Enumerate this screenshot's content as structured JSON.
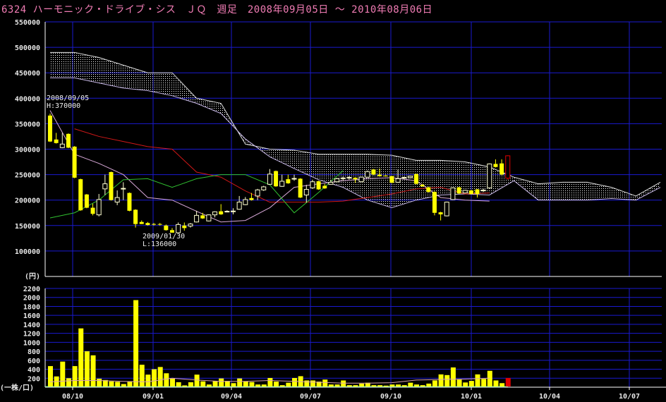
{
  "title": "6324 ハーモニック・ドライブ・シス　ＪＱ　週足　2008年09月05日 ～ 2010年08月06日",
  "chart_data": [
    {
      "type": "candlestick",
      "panel": "price",
      "interval": "weekly",
      "first_bar_date": "2008/09/05",
      "y_unit_label": "(円)",
      "ylim": [
        50000,
        550000
      ],
      "yticks": [
        "550000",
        "500000",
        "450000",
        "400000",
        "350000",
        "300000",
        "250000",
        "200000",
        "150000",
        "100000"
      ],
      "grid": true,
      "colors": {
        "down_fill": "#ffff00",
        "up_outline": "#ffffd0",
        "current_bar": "#e00000",
        "grid": "#1a1ad0",
        "cloud": "#ffffff",
        "kijun": "#d01818",
        "tenkan": "#d8a8d8",
        "chikou": "#30c030"
      },
      "ohlc": [
        [
          366000,
          370000,
          314000,
          315000
        ],
        [
          319000,
          332000,
          311000,
          312000
        ],
        [
          303000,
          332000,
          302000,
          310000
        ],
        [
          330000,
          331000,
          302000,
          303000
        ],
        [
          305000,
          306000,
          243000,
          244000
        ],
        [
          241000,
          242000,
          179000,
          180000
        ],
        [
          211000,
          212000,
          184000,
          185000
        ],
        [
          185000,
          193000,
          170000,
          173000
        ],
        [
          171000,
          212000,
          168000,
          201000
        ],
        [
          222000,
          250000,
          210000,
          232000
        ],
        [
          255000,
          256000,
          199000,
          200000
        ],
        [
          196000,
          219000,
          190000,
          205000
        ],
        [
          222000,
          235000,
          200000,
          223000
        ],
        [
          214000,
          215000,
          178000,
          179000
        ],
        [
          181000,
          182000,
          146000,
          153000
        ],
        [
          157000,
          160000,
          153000,
          153000
        ],
        [
          155000,
          157000,
          150000,
          151000
        ],
        [
          153000,
          155000,
          150000,
          152000
        ],
        [
          153000,
          155000,
          150000,
          152000
        ],
        [
          150000,
          152000,
          140000,
          141000
        ],
        [
          141000,
          145000,
          136000,
          136000
        ],
        [
          136000,
          156000,
          136000,
          152000
        ],
        [
          150000,
          156000,
          140000,
          145000
        ],
        [
          149000,
          155000,
          146000,
          153000
        ],
        [
          157000,
          179000,
          156000,
          170000
        ],
        [
          170000,
          175000,
          163000,
          164000
        ],
        [
          159000,
          172000,
          158000,
          171000
        ],
        [
          171000,
          178000,
          166000,
          177000
        ],
        [
          178000,
          192000,
          171000,
          172000
        ],
        [
          178000,
          180000,
          176000,
          178000
        ],
        [
          178000,
          184000,
          172000,
          178500
        ],
        [
          182000,
          208000,
          181000,
          196000
        ],
        [
          191000,
          206000,
          190000,
          201000
        ],
        [
          204000,
          214000,
          199000,
          200000
        ],
        [
          208000,
          222000,
          200000,
          220000
        ],
        [
          220000,
          228000,
          218000,
          226000
        ],
        [
          231000,
          261000,
          230000,
          251000
        ],
        [
          257000,
          258000,
          226000,
          227000
        ],
        [
          227000,
          250000,
          226000,
          237000
        ],
        [
          241000,
          250000,
          232000,
          233000
        ],
        [
          242000,
          250000,
          238000,
          242500
        ],
        [
          242000,
          243000,
          204000,
          205000
        ],
        [
          210000,
          230000,
          195000,
          221000
        ],
        [
          224000,
          240000,
          222000,
          236000
        ],
        [
          237000,
          238000,
          220000,
          221000
        ],
        [
          228000,
          232000,
          222000,
          223000
        ],
        [
          231000,
          240000,
          230000,
          235000
        ],
        [
          236000,
          244000,
          235000,
          242000
        ],
        [
          243000,
          246000,
          238000,
          243500
        ],
        [
          244000,
          247000,
          240000,
          244500
        ],
        [
          244000,
          245000,
          234000,
          241000
        ],
        [
          236000,
          246000,
          235000,
          245000
        ],
        [
          245000,
          258000,
          244000,
          256000
        ],
        [
          260000,
          261000,
          249000,
          250000
        ],
        [
          250000,
          262000,
          246000,
          247000
        ],
        [
          248000,
          250000,
          246000,
          247000
        ],
        [
          247000,
          248000,
          233000,
          234000
        ],
        [
          235000,
          260000,
          234000,
          242000
        ],
        [
          244000,
          246000,
          241000,
          244500
        ],
        [
          244000,
          248000,
          243000,
          247000
        ],
        [
          251000,
          252000,
          231000,
          232000
        ],
        [
          230000,
          232000,
          226000,
          227000
        ],
        [
          225000,
          226000,
          215000,
          216000
        ],
        [
          216000,
          217000,
          170000,
          175000
        ],
        [
          176000,
          177000,
          160000,
          172000
        ],
        [
          169000,
          197000,
          168000,
          196000
        ],
        [
          201000,
          225000,
          200000,
          224000
        ],
        [
          225000,
          226000,
          212000,
          213000
        ],
        [
          214000,
          220000,
          213000,
          219000
        ],
        [
          219000,
          220000,
          211000,
          212000
        ],
        [
          221000,
          222000,
          205000,
          212000
        ],
        [
          219000,
          222000,
          216000,
          219500
        ],
        [
          224000,
          272000,
          222000,
          271000
        ],
        [
          271000,
          280000,
          264000,
          265000
        ],
        [
          272000,
          280000,
          249000,
          250000
        ],
        [
          243000,
          288000,
          240000,
          287000
        ]
      ],
      "indicator_dates": [
        "2008/09/05",
        "2008/10/03",
        "2008/10/31",
        "2008/11/28",
        "2008/12/26",
        "2009/01/23",
        "2009/02/20",
        "2009/03/20",
        "2009/04/17",
        "2009/05/15",
        "2009/06/12",
        "2009/07/10",
        "2009/08/07",
        "2009/09/04",
        "2009/10/02",
        "2009/10/30",
        "2009/11/27",
        "2009/12/25",
        "2010/01/22",
        "2010/02/19",
        "2010/03/19",
        "2010/04/16",
        "2010/05/14",
        "2010/06/11",
        "2010/07/09",
        "2010/08/06"
      ],
      "cloud_upper": [
        490000,
        490000,
        480000,
        465000,
        450000,
        450000,
        400000,
        390000,
        310000,
        300000,
        298000,
        290000,
        290000,
        290000,
        288000,
        278000,
        278000,
        275000,
        265000,
        245000,
        232000,
        235000,
        235000,
        225000,
        208000,
        235000
      ],
      "cloud_lower": [
        440000,
        440000,
        430000,
        420000,
        415000,
        405000,
        390000,
        370000,
        320000,
        285000,
        262000,
        240000,
        225000,
        200000,
        185000,
        200000,
        210000,
        212000,
        210000,
        238000,
        200000,
        200000,
        200000,
        203000,
        200000,
        225000
      ],
      "kijun": [
        null,
        340000,
        325000,
        315000,
        305000,
        300000,
        255000,
        245000,
        218000,
        196000,
        196000,
        196000,
        198000,
        205000,
        212000,
        222000,
        225000,
        212000,
        214000,
        null,
        null,
        null,
        null,
        null,
        null,
        null
      ],
      "tenkan": [
        376000,
        290000,
        272000,
        250000,
        205000,
        200000,
        178000,
        157000,
        160000,
        185000,
        225000,
        232000,
        238000,
        242000,
        244000,
        238000,
        205000,
        200000,
        198000,
        null,
        null,
        null,
        null,
        null,
        null,
        null
      ],
      "chikou": [
        165000,
        175000,
        200000,
        240000,
        242000,
        225000,
        242000,
        250000,
        250000,
        230000,
        175000,
        215000,
        258000,
        null,
        null,
        null,
        null,
        null,
        null,
        null,
        null,
        null,
        null,
        null,
        null,
        null
      ],
      "annotations": [
        {
          "date": "2008/09/05",
          "label": "H:370000",
          "price": 370000
        },
        {
          "date": "2009/01/30",
          "label": "L:136000",
          "price": 136000
        }
      ]
    },
    {
      "type": "bar",
      "panel": "volume",
      "y_unit_label": "(一株/口)",
      "ylim": [
        0,
        2200
      ],
      "yticks": [
        "2200",
        "2000",
        "1800",
        "1600",
        "1400",
        "1200",
        "1000",
        "800",
        "600",
        "400",
        "200"
      ],
      "values": [
        470,
        240,
        570,
        200,
        470,
        1310,
        800,
        710,
        190,
        160,
        130,
        120,
        70,
        120,
        1940,
        500,
        280,
        400,
        450,
        310,
        190,
        110,
        40,
        110,
        280,
        130,
        60,
        140,
        195,
        140,
        90,
        195,
        130,
        115,
        60,
        60,
        205,
        125,
        45,
        100,
        205,
        245,
        150,
        150,
        125,
        170,
        60,
        60,
        150,
        45,
        45,
        80,
        100,
        45,
        45,
        35,
        60,
        60,
        45,
        100,
        60,
        45,
        80,
        150,
        285,
        270,
        440,
        170,
        105,
        140,
        285,
        185,
        365,
        150,
        90,
        205
      ],
      "moving_average": [
        120,
        150,
        150,
        130,
        120,
        200,
        160,
        130,
        130,
        150,
        130,
        110,
        90,
        90,
        100,
        160,
        170,
        180,
        200,
        null,
        null,
        null,
        null,
        null,
        null,
        null
      ],
      "x_ticks": [
        {
          "label": "08/10",
          "date": "2008/10/01"
        },
        {
          "label": "09/01",
          "date": "2009/01/01"
        },
        {
          "label": "09/04",
          "date": "2009/04/01"
        },
        {
          "label": "09/07",
          "date": "2009/07/01"
        },
        {
          "label": "09/10",
          "date": "2009/10/01"
        },
        {
          "label": "10/01",
          "date": "2010/01/01"
        },
        {
          "label": "10/04",
          "date": "2010/04/01"
        },
        {
          "label": "10/07",
          "date": "2010/07/01"
        }
      ]
    }
  ]
}
